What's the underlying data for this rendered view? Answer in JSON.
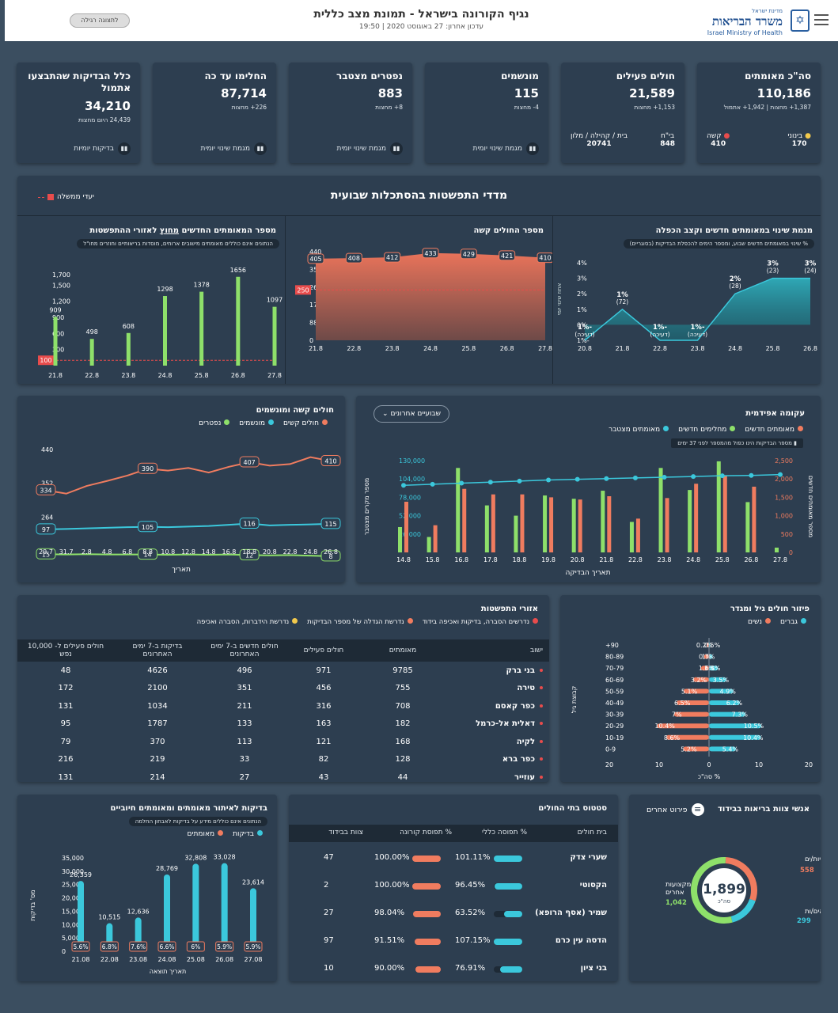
{
  "header": {
    "logo_small": "מדינת ישראל",
    "logo_he": "משרד הבריאות",
    "logo_en": "Israel Ministry of Health",
    "title": "נגיף הקורונה בישראל - תמונת מצב כללית",
    "updated": "עדכון אחרון: 27 באוגוסט 2020 | 19:50",
    "regular_view": "לתצוגה רגילה"
  },
  "kpis": [
    {
      "label": "סה\"כ מאומתים",
      "value": "110,186",
      "sub1": "1,387+ מחצות | 1,942+ אתמול",
      "mild_label": "בינוני",
      "mild": "170",
      "severe_label": "קשה",
      "severe": "410"
    },
    {
      "label": "חולים פעילים",
      "value": "21,589",
      "sub1": "1,153+ מחצות",
      "hosp_label": "בי\"ח",
      "hosp": "848",
      "home_label": "בית / קהילה / מלון",
      "home": "20741"
    },
    {
      "label": "מונשמים",
      "value": "115",
      "sub1": "4- מחצות",
      "btn": "מגמת שינוי יומית"
    },
    {
      "label": "נפטרים מצטבר",
      "value": "883",
      "sub1": "8+ מחצות",
      "btn": "מגמת שינוי יומית"
    },
    {
      "label": "החלימו עד כה",
      "value": "87,714",
      "sub1": "226+ מחצות",
      "btn": "מגמת שינוי יומית"
    },
    {
      "label": "כלל הבדיקות שהתבצעו אתמול",
      "value": "34,210",
      "sub1": "24,439 היום מחצות",
      "btn": "בדיקות יומיות"
    }
  ],
  "weekly": {
    "title": "מדדי התפשטות בהסתכלות שבועית",
    "gov_goal": "יעדי ממשלה",
    "p1_title": "מגמת שינוי במאומתים חדשים וקצב הכפלה",
    "p1_note": "% שינוי במאומתים חדשים שבוע, ומספר הימים להכפלת הבדיקות (בסוגריים)",
    "p1_ylabel": "אחוז שינוי יומי",
    "p2_title": "מספר החולים קשה",
    "p3_title_a": "מספר המאומתים החדשים",
    "p3_title_b": "מחוץ",
    "p3_title_c": "לאזורי ההתפשטות",
    "p3_note": "הנתונים אינם כוללים מאומתים מישובים ארוחים, מוסדות בריאותיים וחוזרים מחו\"ל"
  },
  "chart_data": [
    {
      "type": "area",
      "title": "מגמת שינוי במאומתים חדשים וקצב הכפלה",
      "x": [
        "20.8",
        "21.8",
        "22.8",
        "23.8",
        "24.8",
        "25.8",
        "26.8"
      ],
      "values": [
        -1,
        1,
        -1,
        -1,
        2,
        3,
        3
      ],
      "labels": [
        "-1%",
        "1%",
        "-1%",
        "-1%",
        "2%",
        "3%",
        "3%"
      ],
      "sub": [
        "(דעיכה)",
        "(72)",
        "(דעיכה)",
        "(דעיכה)",
        "(28)",
        "(23)",
        "(24)"
      ],
      "yticks": [
        "4%",
        "3%",
        "2%",
        "1%",
        "0%",
        "-1%"
      ],
      "ylim": [
        -1,
        4
      ]
    },
    {
      "type": "area",
      "title": "מספר החולים קשה",
      "x": [
        "21.8",
        "22.8",
        "23.8",
        "24.8",
        "25.8",
        "26.8",
        "27.8"
      ],
      "values": [
        405,
        408,
        412,
        433,
        429,
        421,
        410
      ],
      "yticks": [
        440,
        352,
        264,
        176,
        88,
        0
      ],
      "goal": 250,
      "ylim": [
        0,
        440
      ]
    },
    {
      "type": "bar",
      "title": "מספר המאומתים החדשים מחוץ לאזורי ההתפשטות",
      "categories": [
        "21.8",
        "22.8",
        "23.8",
        "24.8",
        "25.8",
        "26.8",
        "27.8"
      ],
      "values": [
        909,
        498,
        608,
        1298,
        1378,
        1656,
        1097
      ],
      "yticks": [
        "1,700",
        "1,500",
        "1,200",
        "900",
        "600",
        "300"
      ],
      "goal": 100,
      "ylim": [
        0,
        1800
      ]
    },
    {
      "type": "line",
      "title": "חולים קשה ומונשמים",
      "x": [
        "29.7",
        "31.7",
        "2.8",
        "4.8",
        "6.8",
        "8.8",
        "10.8",
        "12.8",
        "14.8",
        "16.8",
        "18.8",
        "20.8",
        "22.8",
        "24.8",
        "26.8"
      ],
      "yticks": [
        440,
        352,
        264,
        176
      ],
      "series": [
        {
          "name": "חולים קשים",
          "color": "#f07c5f",
          "values": [
            334,
            325,
            345,
            358,
            372,
            390,
            385,
            392,
            380,
            395,
            407,
            398,
            402,
            420,
            410
          ]
        },
        {
          "name": "מונשמים",
          "color": "#3bc8dc",
          "values": [
            97,
            98,
            100,
            102,
            104,
            105,
            104,
            106,
            108,
            112,
            116,
            110,
            112,
            113,
            115
          ]
        },
        {
          "name": "נפטרים",
          "color": "#8ee06a",
          "values": [
            15,
            14,
            15,
            14,
            14,
            14,
            13,
            14,
            13,
            14,
            12,
            11,
            12,
            10,
            8
          ]
        }
      ],
      "callouts": [
        [
          0,
          0,
          "334"
        ],
        [
          5,
          0,
          "390"
        ],
        [
          10,
          0,
          "407"
        ],
        [
          14,
          0,
          "410"
        ],
        [
          0,
          1,
          "97"
        ],
        [
          5,
          1,
          "105"
        ],
        [
          10,
          1,
          "116"
        ],
        [
          14,
          1,
          "115"
        ],
        [
          0,
          2,
          "15"
        ],
        [
          5,
          2,
          "14"
        ],
        [
          10,
          2,
          "12"
        ],
        [
          14,
          2,
          "8"
        ]
      ],
      "xlabel": "תאריך"
    },
    {
      "type": "bar",
      "title": "עקומה אפידמית",
      "categories": [
        "14.8",
        "15.8",
        "16.8",
        "17.8",
        "18.8",
        "19.8",
        "20.8",
        "21.8",
        "22.8",
        "23.8",
        "24.8",
        "25.8",
        "26.8",
        "27.8"
      ],
      "series": [
        {
          "name": "מאומתים חדשים",
          "color": "#f07c5f",
          "values": [
            1380,
            740,
            1730,
            1580,
            1580,
            1500,
            1440,
            1530,
            920,
            1480,
            1870,
            2100,
            1790,
            0
          ]
        },
        {
          "name": "מחלימים חדשים",
          "color": "#8ee06a",
          "values": [
            690,
            420,
            2300,
            1280,
            1000,
            1550,
            1460,
            1680,
            830,
            2300,
            1700,
            2480,
            1370,
            130
          ]
        },
        {
          "name": "מאומתים מצטבר",
          "color": "#3bc8dc",
          "values": [
            95000,
            96500,
            98000,
            99500,
            101000,
            102500,
            103500,
            104500,
            105500,
            106500,
            107500,
            108500,
            109000,
            110186
          ]
        }
      ],
      "y_left_ticks": [
        "2,500",
        "2,000",
        "1,500",
        "1,000",
        "500",
        "0"
      ],
      "y_right_ticks": [
        "130,000",
        "104,000",
        "78,000",
        "52,000",
        "26,000"
      ],
      "y_left_label": "מספר מאומתים חדשים",
      "y_right_label": "מספר מקרים מצטבר",
      "xlabel": "תאריך הבדיקה"
    },
    {
      "type": "bar",
      "title": "פיזור חולים גיל ומגדר",
      "categories": [
        "90+",
        "80-89",
        "70-79",
        "60-69",
        "50-59",
        "40-49",
        "30-39",
        "20-29",
        "10-19",
        "0-9"
      ],
      "series": [
        {
          "name": "נשים",
          "color": "#f07c5f",
          "values": [
            0.5,
            1,
            1.6,
            3.2,
            5.1,
            6.5,
            7,
            10.4,
            8.6,
            5.2
          ]
        },
        {
          "name": "גברים",
          "color": "#3bc8dc",
          "values": [
            0.2,
            0.7,
            1.8,
            3.5,
            4.9,
            6.2,
            7.3,
            10.5,
            10.4,
            5.4
          ]
        }
      ],
      "xticks": [
        "20",
        "10",
        "0",
        "10",
        "20"
      ],
      "xlabel": "% סה\"כ",
      "ylabel": "קבוצת גיל"
    },
    {
      "type": "bar",
      "title": "בדיקות לאיתור מאומתים ומאומתים חיוביים",
      "categories": [
        "21.08",
        "22.08",
        "23.08",
        "24.08",
        "25.08",
        "26.08",
        "27.08"
      ],
      "values": [
        26359,
        10515,
        12636,
        28769,
        32808,
        33028,
        23614
      ],
      "pct": [
        "5.6%",
        "6.8%",
        "7.6%",
        "6.6%",
        "6%",
        "5.9%",
        "5.9%"
      ],
      "series": [
        {
          "name": "בדיקות",
          "color": "#3bc8dc"
        },
        {
          "name": "מאומתים",
          "color": "#f07c5f"
        }
      ],
      "yticks": [
        "35,000",
        "30,000",
        "25,000",
        "20,000",
        "15,000",
        "10,000",
        "5,000",
        "0"
      ],
      "ylim": [
        0,
        35000
      ],
      "ylabel": "מס' בדיקות",
      "xlabel": "תאריך תוצאה"
    }
  ],
  "right_legend_weekly": "שבועיים אחרונים",
  "epi": {
    "title": "עקומה אפידמית",
    "note": "מספר הבדיקות הינו כפול מהמספר לפני 37 ימים",
    "dropdown": "שבועיים אחרונים"
  },
  "severe": {
    "title": "חולים קשה ומונשמים"
  },
  "areas": {
    "title": "אזורי התפשטות",
    "legend": [
      "נדרשים הסברה, בדיקות ואכיפה בידוד",
      "נדרשת הגדלה של מספר הבדיקות",
      "נדרשת הידברות, הסברה ואכיפה"
    ],
    "cols": [
      "ישוב",
      "מאומתים",
      "חולים פעילים",
      "חולים חדשים ב-7 ימים האחרונים",
      "בדיקות ב-7 ימים האחרונים",
      "חולים פעילים ל- 10,000 נפש"
    ],
    "rows": [
      [
        "בני ברק",
        "9785",
        "971",
        "496",
        "4626",
        "48"
      ],
      [
        "טירה",
        "755",
        "456",
        "351",
        "2100",
        "172"
      ],
      [
        "כפר קאסם",
        "708",
        "316",
        "211",
        "1034",
        "131"
      ],
      [
        "דאלית אל-כרמל",
        "182",
        "163",
        "133",
        "1787",
        "95"
      ],
      [
        "לקיה",
        "168",
        "121",
        "113",
        "370",
        "79"
      ],
      [
        "כפר ברא",
        "128",
        "82",
        "33",
        "219",
        "216"
      ],
      [
        "עוזייר",
        "44",
        "43",
        "27",
        "214",
        "131"
      ]
    ]
  },
  "age": {
    "title": "פיזור חולים גיל ומגדר",
    "legend_m": "גברים",
    "legend_f": "נשים",
    "ylabel": "קבוצת גיל",
    "xlabel": "% סה\"כ"
  },
  "staff": {
    "title": "אנשי צוות בריאות בבידוד",
    "more": "פירוט אחרים",
    "total": "1,899",
    "total_lbl": "סה\"כ",
    "nurses_lbl": "אחיות/ים",
    "nurses": "558",
    "doctors_lbl": "רופאים/ות",
    "doctors": "299",
    "other_lbl": "מקצועות אחרים",
    "other": "1,042"
  },
  "hospitals": {
    "title": "סטטוס בתי החולים",
    "cols": [
      "בית חולים",
      "% תפוסה כללי",
      "% תפוסת קורונה",
      "צוות בבידוד"
    ],
    "rows": [
      {
        "name": "שערי צדק",
        "gen": "101.11%",
        "gen_v": 101,
        "cov": "100.00%",
        "cov_v": 100,
        "staff": "47"
      },
      {
        "name": "הקסוטי",
        "gen": "96.45%",
        "gen_v": 96,
        "cov": "100.00%",
        "cov_v": 100,
        "staff": "2"
      },
      {
        "name": "שמיר (אסף הרופא)",
        "gen": "63.52%",
        "gen_v": 64,
        "cov": "98.04%",
        "cov_v": 98,
        "staff": "27"
      },
      {
        "name": "הדסה עין כרם",
        "gen": "107.15%",
        "gen_v": 107,
        "cov": "91.51%",
        "cov_v": 92,
        "staff": "97"
      },
      {
        "name": "בני ציון",
        "gen": "76.91%",
        "gen_v": 77,
        "cov": "90.00%",
        "cov_v": 90,
        "staff": "10"
      }
    ]
  },
  "tests": {
    "title": "בדיקות לאיתור מאומתים ומאומתים חיוביים",
    "note": "הנתונים אינם כוללים מידע על בדיקות לאבחון החלמה",
    "leg_tests": "בדיקות",
    "leg_pos": "מאומתים",
    "ylabel": "מס' בדיקות",
    "xlabel": "תאריך תוצאה"
  },
  "colors": {
    "bg": "#3b4e60",
    "card": "#2d3e50",
    "orange": "#f07c5f",
    "cyan": "#3bc8dc",
    "green": "#8ee06a",
    "red": "#e84c4c"
  }
}
